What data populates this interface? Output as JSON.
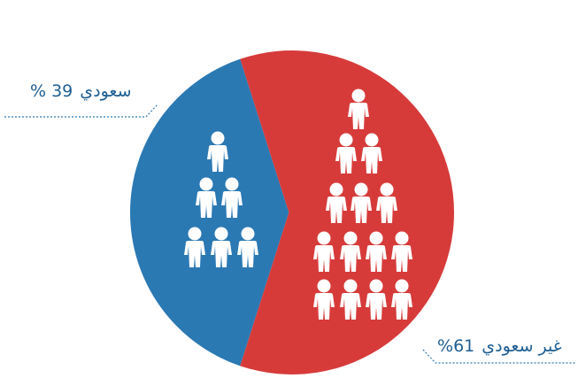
{
  "chart_data": {
    "type": "pie",
    "categories": [
      "سعودي",
      "غير سعودي"
    ],
    "values": [
      39,
      61
    ],
    "value_labels": [
      "39 %",
      "61%"
    ],
    "colors": [
      "#2b79b3",
      "#d63b3a"
    ]
  }
}
